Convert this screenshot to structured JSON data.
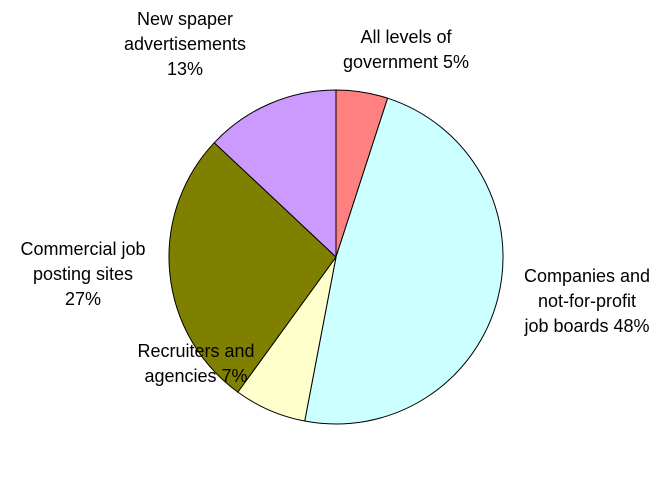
{
  "chart_data": {
    "type": "pie",
    "title": "",
    "slices": [
      {
        "name": "All levels of government",
        "value": 5,
        "color": "#ff8080",
        "label_lines": [
          "All levels of",
          "government 5%"
        ]
      },
      {
        "name": "Companies and not-for-profit job boards",
        "value": 48,
        "color": "#ccffff",
        "label_lines": [
          "Companies and",
          "not-for-profit",
          "job boards 48%"
        ]
      },
      {
        "name": "Recruiters and agencies",
        "value": 7,
        "color": "#ffffcc",
        "label_lines": [
          "Recruiters and",
          "agencies 7%"
        ]
      },
      {
        "name": "Commercial job posting sites",
        "value": 27,
        "color": "#808000",
        "label_lines": [
          "Commercial job",
          "posting sites",
          "27%"
        ]
      },
      {
        "name": "New spaper advertisements",
        "value": 13,
        "color": "#cc99ff",
        "label_lines": [
          "New spaper",
          "advertisements",
          "13%"
        ]
      }
    ]
  }
}
